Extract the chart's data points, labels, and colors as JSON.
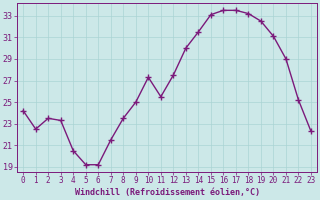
{
  "x": [
    0,
    1,
    2,
    3,
    4,
    5,
    6,
    7,
    8,
    9,
    10,
    11,
    12,
    13,
    14,
    15,
    16,
    17,
    18,
    19,
    20,
    21,
    22,
    23
  ],
  "y": [
    24.2,
    22.5,
    23.5,
    23.3,
    20.5,
    19.2,
    19.2,
    21.5,
    23.5,
    25.0,
    27.3,
    25.5,
    27.5,
    30.0,
    31.5,
    33.1,
    33.5,
    33.5,
    33.2,
    32.5,
    31.1,
    29.0,
    25.2,
    22.3
  ],
  "line_color": "#7b1a7b",
  "marker": "+",
  "marker_size": 4,
  "background_color": "#cce8e8",
  "grid_color": "#aad4d4",
  "axis_color": "#7b1a7b",
  "xlabel": "Windchill (Refroidissement éolien,°C)",
  "ylim": [
    18.5,
    34.2
  ],
  "yticks": [
    19,
    21,
    23,
    25,
    27,
    29,
    31,
    33
  ],
  "xlim": [
    -0.5,
    23.5
  ],
  "xticks": [
    0,
    1,
    2,
    3,
    4,
    5,
    6,
    7,
    8,
    9,
    10,
    11,
    12,
    13,
    14,
    15,
    16,
    17,
    18,
    19,
    20,
    21,
    22,
    23
  ],
  "font_color": "#7b1a7b",
  "line_width": 1.0
}
